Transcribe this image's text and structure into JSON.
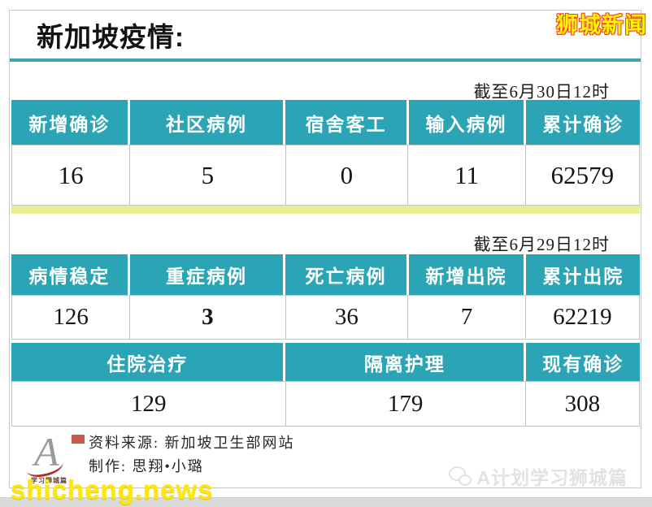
{
  "page": {
    "title": "新加坡疫情:",
    "brand_badge": "狮城新闻",
    "site_link": "shicheng.news"
  },
  "colors": {
    "table_header_teal": "#2BA4B5",
    "title_underline_teal": "#3FA3B2",
    "section_divider_yellow": "#EBEE8F",
    "badge_yellow": "#FFF100",
    "badge_outline_red": "#E8432B",
    "site_link_yellow": "#FFE70A",
    "watermark_gray": "#E2E2E2"
  },
  "section_june30": {
    "as_of": "截至6月30日12时",
    "headers": [
      "新增确诊",
      "社区病例",
      "宿舍客工",
      "输入病例",
      "累计确诊"
    ],
    "values": [
      "16",
      "5",
      "0",
      "11",
      "62579"
    ]
  },
  "section_june29": {
    "as_of": "截至6月29日12时",
    "headers": [
      "病情稳定",
      "重症病例",
      "死亡病例",
      "新增出院",
      "累计出院"
    ],
    "values": [
      "126",
      "3",
      "36",
      "7",
      "62219"
    ],
    "headers_row2": [
      "住院治疗",
      "隔离护理",
      "现有确诊"
    ],
    "values_row2": [
      "129",
      "179",
      "308"
    ]
  },
  "footer": {
    "source_line": "资料来源: 新加坡卫生部网站",
    "credit_line": "制作: 思翔•小璐",
    "logo_letter": "A",
    "logo_caption": "学习狮城篇",
    "watermark_label": "A计划学习狮城篇"
  }
}
